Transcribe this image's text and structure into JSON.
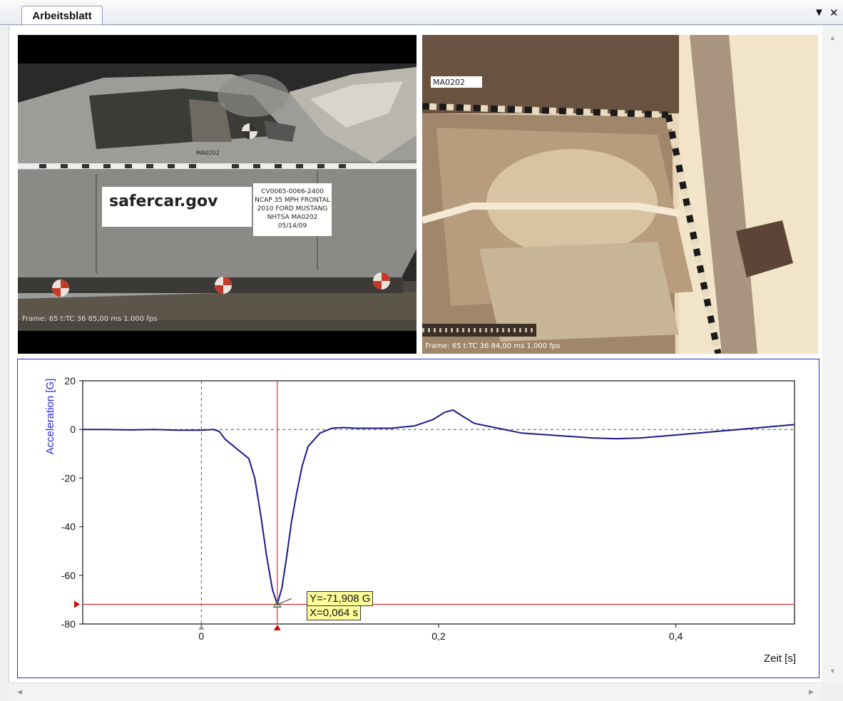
{
  "tab": {
    "label": "Arbeitsblatt"
  },
  "window_controls": {
    "dropdown_icon": "▼",
    "close_icon": "✕"
  },
  "video_left": {
    "sign_left": "safercar.gov",
    "sign_lines": [
      "CV0065-0066-2400",
      "NCAP 35 MPH FRONTAL",
      "2010 FORD MUSTANG",
      "NHTSA MA0202",
      "05/14/09"
    ],
    "tag": "MA0202",
    "overlay": "Frame: 65  t:TC 36  85,00 ms  1.000 fps"
  },
  "video_right": {
    "tag": "MA0202",
    "overlay": "Frame: 65  t:TC 36  84,00 ms  1.000 fps"
  },
  "chart_data": {
    "type": "line",
    "xlabel": "Zeit [s]",
    "ylabel": "Acceleration [G]",
    "xlim": [
      -0.1,
      0.5
    ],
    "ylim": [
      -80,
      20
    ],
    "xticks": [
      0,
      0.2,
      0.4
    ],
    "xtick_labels": [
      "0",
      "0,2",
      "0,4"
    ],
    "yticks": [
      20,
      0,
      -20,
      -40,
      -60,
      -80
    ],
    "ytick_labels": [
      "20",
      "0",
      "-20",
      "-40",
      "-60",
      "-80"
    ],
    "grid": false,
    "line_color": "#1a1a8c",
    "cursor_color": "#e00000",
    "cursor": {
      "x": 0.064,
      "y": -71.908
    },
    "readout_y": "Y=-71,908 G",
    "readout_x": "X=0,064 s",
    "series": [
      {
        "x": [
          -0.1,
          -0.08,
          -0.06,
          -0.04,
          -0.02,
          0.0,
          0.01,
          0.015,
          0.02,
          0.025,
          0.03,
          0.035,
          0.04,
          0.045,
          0.05,
          0.055,
          0.06,
          0.064,
          0.068,
          0.072,
          0.076,
          0.08,
          0.085,
          0.09,
          0.1,
          0.11,
          0.12,
          0.13,
          0.14,
          0.16,
          0.18,
          0.195,
          0.205,
          0.212,
          0.22,
          0.23,
          0.25,
          0.27,
          0.3,
          0.33,
          0.35,
          0.37,
          0.4,
          0.43,
          0.46,
          0.5
        ],
        "y": [
          0,
          0,
          -0.2,
          0,
          -0.3,
          -0.3,
          0,
          -0.8,
          -4,
          -6,
          -8,
          -10,
          -12,
          -20,
          -35,
          -52,
          -66,
          -71.9,
          -65,
          -52,
          -38,
          -27,
          -15,
          -7,
          -1.5,
          0.5,
          0.8,
          0.5,
          0.5,
          0.5,
          1.5,
          4,
          7,
          8,
          5.5,
          2.5,
          0.5,
          -1.5,
          -2.5,
          -3.5,
          -3.8,
          -3.5,
          -2.3,
          -1,
          0.3,
          2
        ]
      }
    ]
  }
}
